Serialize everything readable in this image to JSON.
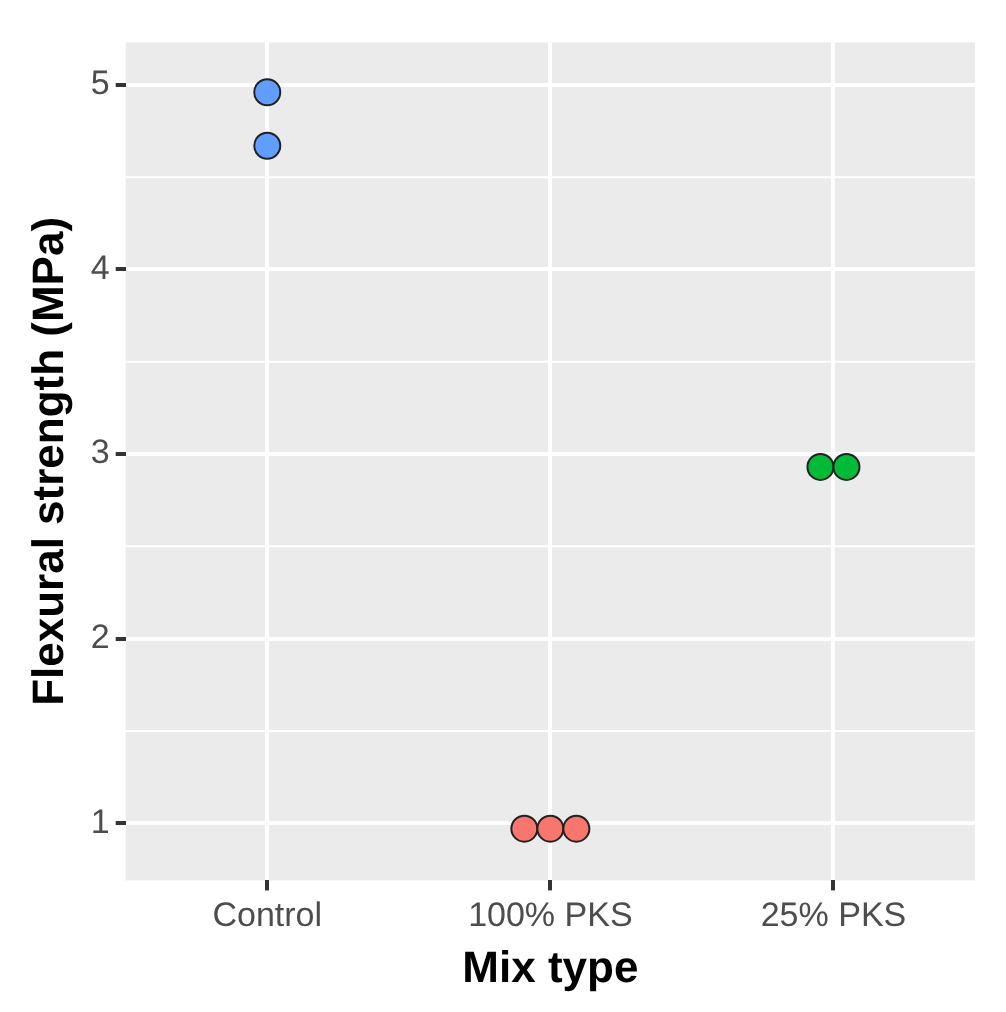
{
  "chart_data": {
    "type": "scatter",
    "xlabel": "Mix type",
    "ylabel": "Flexural strength (MPa)",
    "categories": [
      "Control",
      "100% PKS",
      "25% PKS"
    ],
    "series": [
      {
        "color": "#619cff",
        "x": [
          "Control",
          "Control"
        ],
        "values": [
          4.96,
          4.67
        ]
      },
      {
        "color": "#f8766d",
        "x": [
          "100% PKS",
          "100% PKS",
          "100% PKS"
        ],
        "values": [
          0.97,
          0.97,
          0.97
        ]
      },
      {
        "color": "#00ba38",
        "x": [
          "25% PKS",
          "25% PKS"
        ],
        "values": [
          2.93,
          2.93
        ]
      }
    ],
    "ylim": [
      0.69,
      5.23
    ],
    "yticks": [
      1,
      2,
      3,
      4,
      5
    ],
    "grid": true,
    "legend": false,
    "marker": "circle"
  }
}
